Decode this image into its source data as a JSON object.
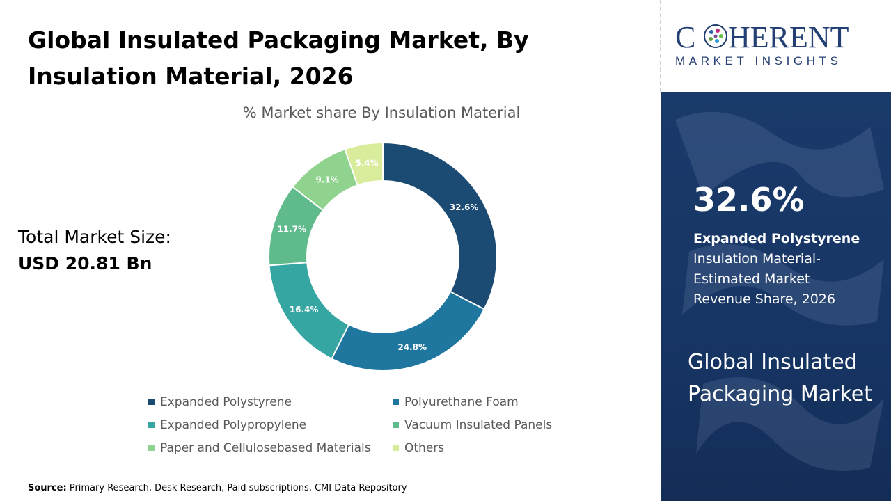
{
  "header": {
    "title": "Global Insulated Packaging Market, By Insulation Material, 2026"
  },
  "market_size": {
    "label": "Total Market Size:",
    "value": "USD 20.81 Bn"
  },
  "brand": {
    "name_line1": "COHERENT",
    "name_line2": "MARKET INSIGHTS"
  },
  "highlight": {
    "value": "32.6%",
    "segment": "Expanded Polystyrene",
    "description": "Insulation Material-Estimated Market Revenue Share, 2026"
  },
  "panel": {
    "market_name": "Global Insulated Packaging Market"
  },
  "source": {
    "label": "Source:",
    "text": "Primary Research, Desk Research, Paid subscriptions, CMI Data Repository"
  },
  "chart_data": {
    "type": "pie",
    "title": "% Market share By Insulation Material",
    "donut": true,
    "legend_position": "bottom",
    "categories": [
      "Expanded Polystyrene",
      "Polyurethane Foam",
      "Expanded Polypropylene",
      "Vacuum Insulated Panels",
      "Paper and Cellulosebased Materials",
      "Others"
    ],
    "values": [
      32.6,
      24.8,
      16.4,
      11.7,
      9.1,
      5.4
    ],
    "data_labels": [
      "32.6%",
      "24.8%",
      "16.4%",
      "11.7%",
      "9.1%",
      "5.4%"
    ],
    "colors": [
      "#1b4b72",
      "#1f77a0",
      "#35a6a2",
      "#5fba8c",
      "#8fd38e",
      "#d9ec9b"
    ],
    "label_colors": [
      "#ffffff",
      "#ffffff",
      "#ffffff",
      "#ffffff",
      "#ffffff",
      "#ffffff"
    ]
  }
}
